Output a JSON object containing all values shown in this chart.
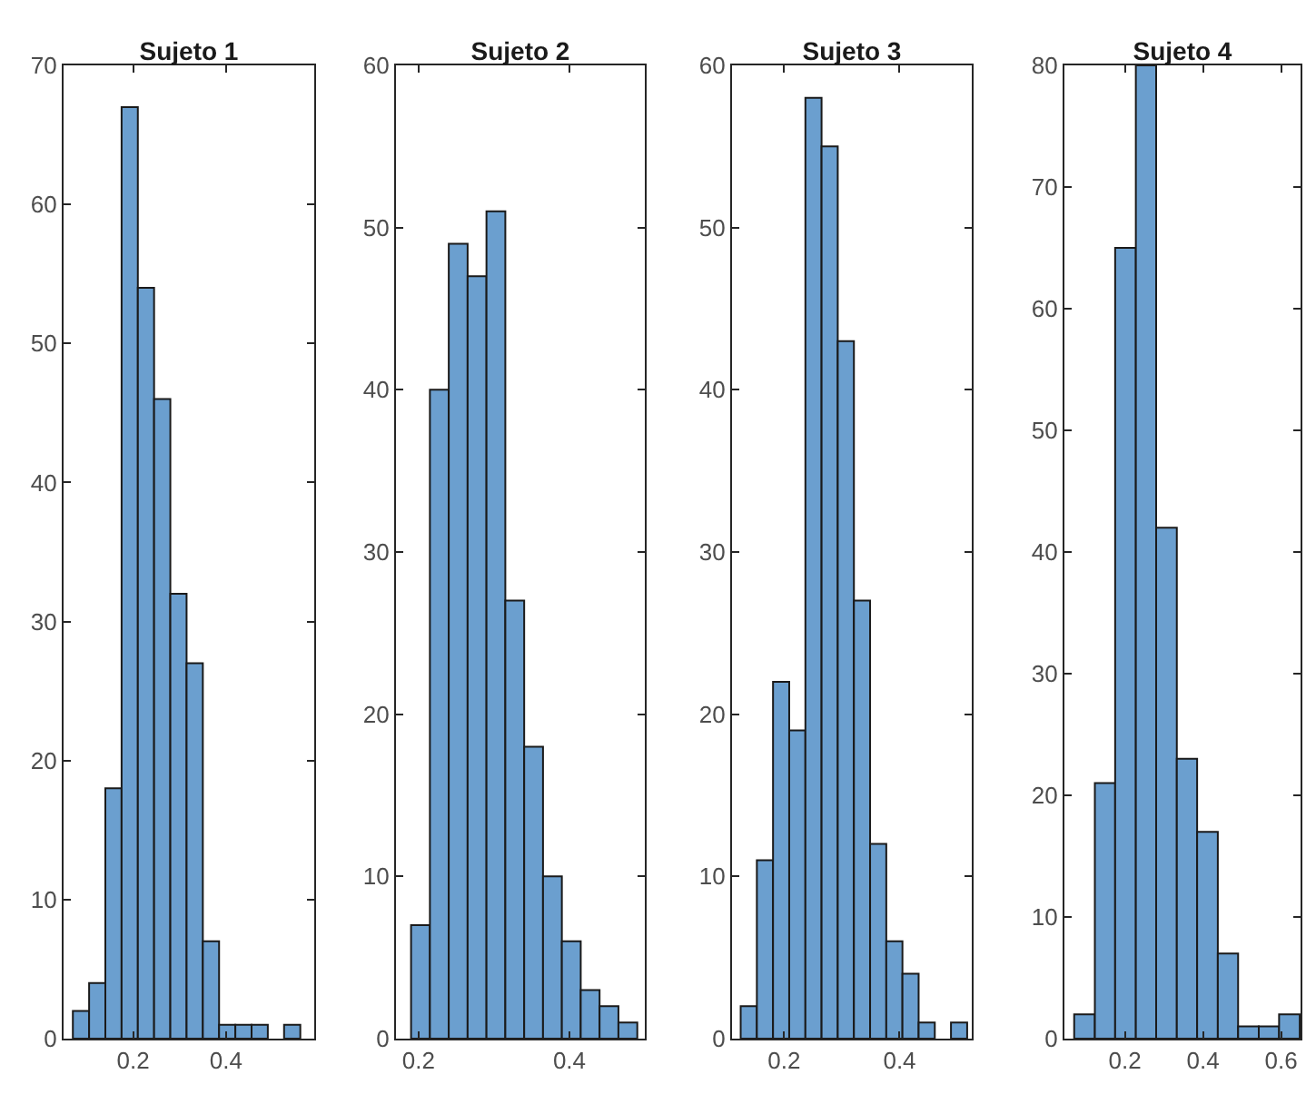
{
  "chart_data": [
    {
      "type": "histogram",
      "title": "Sujeto 1",
      "bins": [
        0.07,
        0.105,
        0.14,
        0.175,
        0.21,
        0.245,
        0.28,
        0.315,
        0.35,
        0.385,
        0.42,
        0.455,
        0.49,
        0.525,
        0.56
      ],
      "values": [
        2,
        4,
        18,
        67,
        54,
        46,
        32,
        27,
        7,
        1,
        1,
        1,
        0,
        1
      ],
      "color": "#6b9fcf",
      "xlim": [
        0.05,
        0.59
      ],
      "xticks": [
        0.2,
        0.4
      ],
      "ylim": [
        0,
        70
      ],
      "yticks": [
        0,
        10,
        20,
        30,
        40,
        50,
        60,
        70
      ]
    },
    {
      "type": "histogram",
      "title": "Sujeto 2",
      "bins": [
        0.19,
        0.215,
        0.24,
        0.265,
        0.29,
        0.315,
        0.34,
        0.365,
        0.39,
        0.415,
        0.44,
        0.465,
        0.49
      ],
      "values": [
        7,
        40,
        49,
        47,
        51,
        27,
        18,
        10,
        6,
        3,
        2,
        1
      ],
      "color": "#6b9fcf",
      "xlim": [
        0.17,
        0.5
      ],
      "xticks": [
        0.2,
        0.4
      ],
      "ylim": [
        0,
        60
      ],
      "yticks": [
        0,
        10,
        20,
        30,
        40,
        50,
        60
      ]
    },
    {
      "type": "histogram",
      "title": "Sujeto 3",
      "bins": [
        0.125,
        0.153,
        0.181,
        0.209,
        0.237,
        0.265,
        0.293,
        0.321,
        0.349,
        0.377,
        0.405,
        0.433,
        0.461,
        0.489,
        0.517
      ],
      "values": [
        2,
        11,
        22,
        19,
        58,
        55,
        43,
        27,
        12,
        6,
        4,
        1,
        0,
        1
      ],
      "color": "#6b9fcf",
      "xlim": [
        0.11,
        0.525
      ],
      "xticks": [
        0.2,
        0.4
      ],
      "ylim": [
        0,
        60
      ],
      "yticks": [
        0,
        10,
        20,
        30,
        40,
        50,
        60
      ]
    },
    {
      "type": "histogram",
      "title": "Sujeto 4",
      "bins": [
        0.07,
        0.123,
        0.175,
        0.228,
        0.28,
        0.333,
        0.385,
        0.438,
        0.49,
        0.543,
        0.595,
        0.648
      ],
      "values": [
        2,
        21,
        65,
        80,
        42,
        23,
        17,
        7,
        1,
        1,
        2
      ],
      "color": "#6b9fcf",
      "xlim": [
        0.045,
        0.65
      ],
      "xticks": [
        0.2,
        0.4,
        0.6
      ],
      "ylim": [
        0,
        80
      ],
      "yticks": [
        0,
        10,
        20,
        30,
        40,
        50,
        60,
        70,
        80
      ]
    }
  ]
}
